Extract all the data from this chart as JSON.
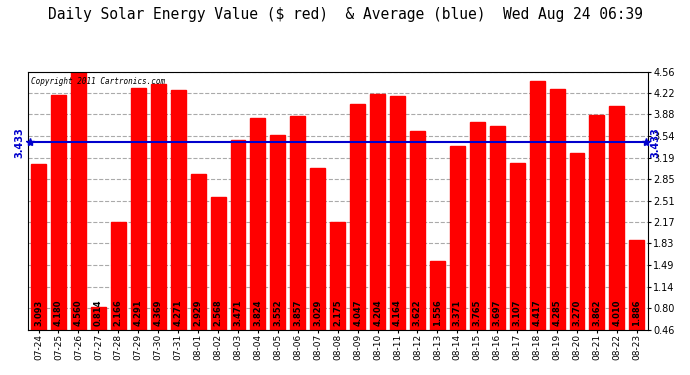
{
  "title": "Daily Solar Energy Value ($ red)  & Average (blue)  Wed Aug 24 06:39",
  "copyright": "Copyright 2011 Cartronics.com",
  "average": 3.433,
  "categories": [
    "07-24",
    "07-25",
    "07-26",
    "07-27",
    "07-28",
    "07-29",
    "07-30",
    "07-31",
    "08-01",
    "08-02",
    "08-03",
    "08-04",
    "08-05",
    "08-06",
    "08-07",
    "08-08",
    "08-09",
    "08-10",
    "08-11",
    "08-12",
    "08-13",
    "08-14",
    "08-15",
    "08-16",
    "08-17",
    "08-18",
    "08-19",
    "08-20",
    "08-21",
    "08-22",
    "08-23"
  ],
  "values": [
    3.093,
    4.18,
    4.56,
    0.814,
    2.166,
    4.291,
    4.369,
    4.271,
    2.929,
    2.568,
    3.471,
    3.824,
    3.552,
    3.857,
    3.029,
    2.175,
    4.047,
    4.204,
    4.164,
    3.622,
    1.556,
    3.371,
    3.765,
    3.697,
    3.107,
    4.417,
    4.285,
    3.27,
    3.862,
    4.01,
    1.886
  ],
  "bar_color": "#FF0000",
  "avg_line_color": "#0000CD",
  "bg_color": "#FFFFFF",
  "grid_color": "#AAAAAA",
  "ylim_min": 0.46,
  "ylim_max": 4.56,
  "yticks": [
    0.46,
    0.8,
    1.14,
    1.49,
    1.83,
    2.17,
    2.51,
    2.85,
    3.19,
    3.54,
    3.88,
    4.22,
    4.56
  ],
  "title_fontsize": 10.5,
  "bar_label_fontsize": 6,
  "tick_fontsize": 7,
  "avg_label": "3.433"
}
